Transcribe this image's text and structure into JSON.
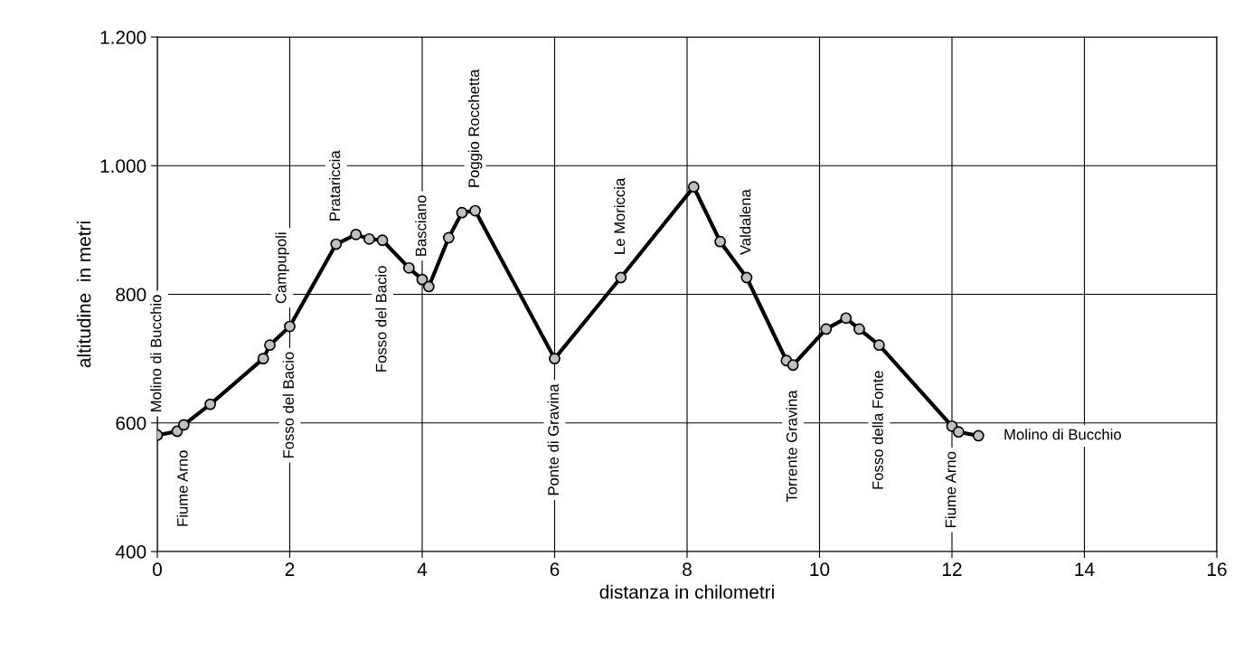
{
  "chart_data": {
    "type": "line",
    "xlabel": "distanza in chilometri",
    "ylabel": "altitudine  in metri",
    "x": [
      0,
      0.3,
      0.4,
      0.8,
      1.6,
      1.7,
      2.0,
      2.7,
      3.0,
      3.2,
      3.4,
      3.8,
      4.0,
      4.1,
      4.4,
      4.6,
      4.8,
      6.0,
      7.0,
      8.1,
      8.5,
      8.9,
      9.5,
      9.6,
      10.1,
      10.4,
      10.6,
      10.9,
      12.0,
      12.1,
      12.4
    ],
    "series": [
      {
        "color": "#000000",
        "values": [
          581,
          587,
          597,
          629,
          700,
          721,
          750,
          878,
          893,
          886,
          884,
          841,
          823,
          812,
          888,
          927,
          930,
          700,
          826,
          967,
          882,
          826,
          697,
          690,
          746,
          763,
          746,
          721,
          595,
          586,
          580
        ]
      }
    ],
    "xlim": [
      0,
      16
    ],
    "xticks": [
      0,
      2,
      4,
      6,
      8,
      10,
      12,
      14,
      16
    ],
    "ylim": [
      400,
      1200
    ],
    "yticks": [
      {
        "value": 400,
        "label": "400"
      },
      {
        "value": 600,
        "label": "600"
      },
      {
        "value": 800,
        "label": "800"
      },
      {
        "value": 1000,
        "label": "1.000"
      },
      {
        "value": 1200,
        "label": "1.200"
      }
    ],
    "grid": true,
    "marker": "circle",
    "line_style": "solid",
    "annotations": [
      {
        "text": "Molino di Bucchio",
        "x": 0,
        "y": 581
      },
      {
        "text": "Fiume Arno",
        "x": 0.4,
        "y": 597
      },
      {
        "text": "Fosso del Bacio",
        "x": 2.0,
        "y": 750
      },
      {
        "text": "Campupoli",
        "x": 2.0,
        "y": 750
      },
      {
        "text": "Pratariccia",
        "x": 2.7,
        "y": 878
      },
      {
        "text": "Fosso del Bacio",
        "x": 3.4,
        "y": 884
      },
      {
        "text": "Basciano",
        "x": 4.0,
        "y": 823
      },
      {
        "text": "Poggio Rocchetta",
        "x": 4.8,
        "y": 930
      },
      {
        "text": "Ponte di Gravina",
        "x": 6.0,
        "y": 700
      },
      {
        "text": "Le Moriccia",
        "x": 7.0,
        "y": 826
      },
      {
        "text": "Valdalena",
        "x": 8.9,
        "y": 826
      },
      {
        "text": "Torrente Gravina",
        "x": 9.6,
        "y": 690
      },
      {
        "text": "Fosso della Fonte",
        "x": 10.9,
        "y": 721
      },
      {
        "text": "Fiume Arno",
        "x": 12.0,
        "y": 595
      },
      {
        "text": "Molino di Bucchio",
        "x": 12.4,
        "y": 580
      }
    ]
  }
}
